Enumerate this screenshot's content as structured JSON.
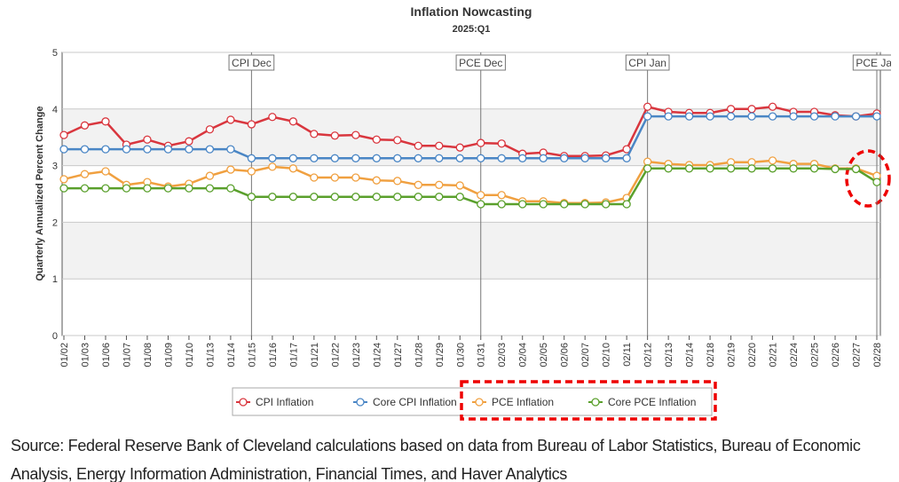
{
  "chart_data": {
    "type": "line",
    "title": "Inflation Nowcasting",
    "subtitle": "2025:Q1",
    "y_label": "Quarterly Annualized Percent Change",
    "categories": [
      "01/02",
      "01/03",
      "01/06",
      "01/07",
      "01/08",
      "01/09",
      "01/10",
      "01/13",
      "01/14",
      "01/15",
      "01/16",
      "01/17",
      "01/21",
      "01/22",
      "01/23",
      "01/24",
      "01/27",
      "01/28",
      "01/29",
      "01/30",
      "01/31",
      "02/03",
      "02/04",
      "02/05",
      "02/06",
      "02/07",
      "02/10",
      "02/11",
      "02/12",
      "02/13",
      "02/14",
      "02/18",
      "02/19",
      "02/20",
      "02/21",
      "02/24",
      "02/25",
      "02/26",
      "02/27",
      "02/28"
    ],
    "series": [
      {
        "name": "CPI Inflation",
        "color": "#d9363e",
        "values": [
          3.54,
          3.71,
          3.78,
          3.37,
          3.46,
          3.35,
          3.43,
          3.64,
          3.81,
          3.73,
          3.86,
          3.78,
          3.56,
          3.53,
          3.54,
          3.46,
          3.45,
          3.35,
          3.35,
          3.32,
          3.4,
          3.39,
          3.21,
          3.23,
          3.17,
          3.17,
          3.18,
          3.29,
          4.04,
          3.95,
          3.93,
          3.93,
          4.0,
          4.0,
          4.04,
          3.95,
          3.95,
          3.89,
          3.87,
          3.92
        ]
      },
      {
        "name": "Core CPI Inflation",
        "color": "#4a86c5",
        "values": [
          3.29,
          3.29,
          3.29,
          3.29,
          3.29,
          3.29,
          3.29,
          3.29,
          3.29,
          3.13,
          3.13,
          3.13,
          3.13,
          3.13,
          3.13,
          3.13,
          3.13,
          3.13,
          3.13,
          3.13,
          3.13,
          3.13,
          3.13,
          3.13,
          3.13,
          3.13,
          3.13,
          3.13,
          3.87,
          3.87,
          3.87,
          3.87,
          3.87,
          3.87,
          3.87,
          3.87,
          3.87,
          3.87,
          3.87,
          3.87
        ]
      },
      {
        "name": "PCE Inflation",
        "color": "#f0a040",
        "values": [
          2.76,
          2.85,
          2.9,
          2.66,
          2.71,
          2.63,
          2.68,
          2.82,
          2.93,
          2.9,
          2.98,
          2.95,
          2.79,
          2.79,
          2.79,
          2.74,
          2.73,
          2.66,
          2.66,
          2.65,
          2.48,
          2.48,
          2.37,
          2.37,
          2.34,
          2.34,
          2.35,
          2.43,
          3.07,
          3.03,
          3.01,
          3.01,
          3.06,
          3.06,
          3.09,
          3.03,
          3.03,
          2.95,
          2.95,
          2.82
        ]
      },
      {
        "name": "Core PCE Inflation",
        "color": "#5aa02c",
        "values": [
          2.6,
          2.6,
          2.6,
          2.6,
          2.6,
          2.6,
          2.6,
          2.6,
          2.6,
          2.45,
          2.45,
          2.45,
          2.45,
          2.45,
          2.45,
          2.45,
          2.45,
          2.45,
          2.45,
          2.45,
          2.32,
          2.32,
          2.32,
          2.32,
          2.32,
          2.32,
          2.32,
          2.32,
          2.95,
          2.95,
          2.95,
          2.95,
          2.95,
          2.95,
          2.95,
          2.95,
          2.95,
          2.94,
          2.94,
          2.71
        ]
      }
    ],
    "ylim": [
      0,
      5
    ],
    "yticks": [
      0,
      1,
      2,
      3,
      4,
      5
    ],
    "grid": true,
    "release_markers": [
      {
        "category": "01/15",
        "label": "CPI Dec"
      },
      {
        "category": "01/31",
        "label": "PCE Dec"
      },
      {
        "category": "02/12",
        "label": "CPI Jan"
      },
      {
        "category": "02/28",
        "label": "PCE Jan"
      }
    ],
    "source": "Source: Federal Reserve Bank of Cleveland calculations based on data from Bureau of Labor Statistics, Bureau of Economic Analysis, Energy Information Administration, Financial Times, and Haver Analytics"
  }
}
